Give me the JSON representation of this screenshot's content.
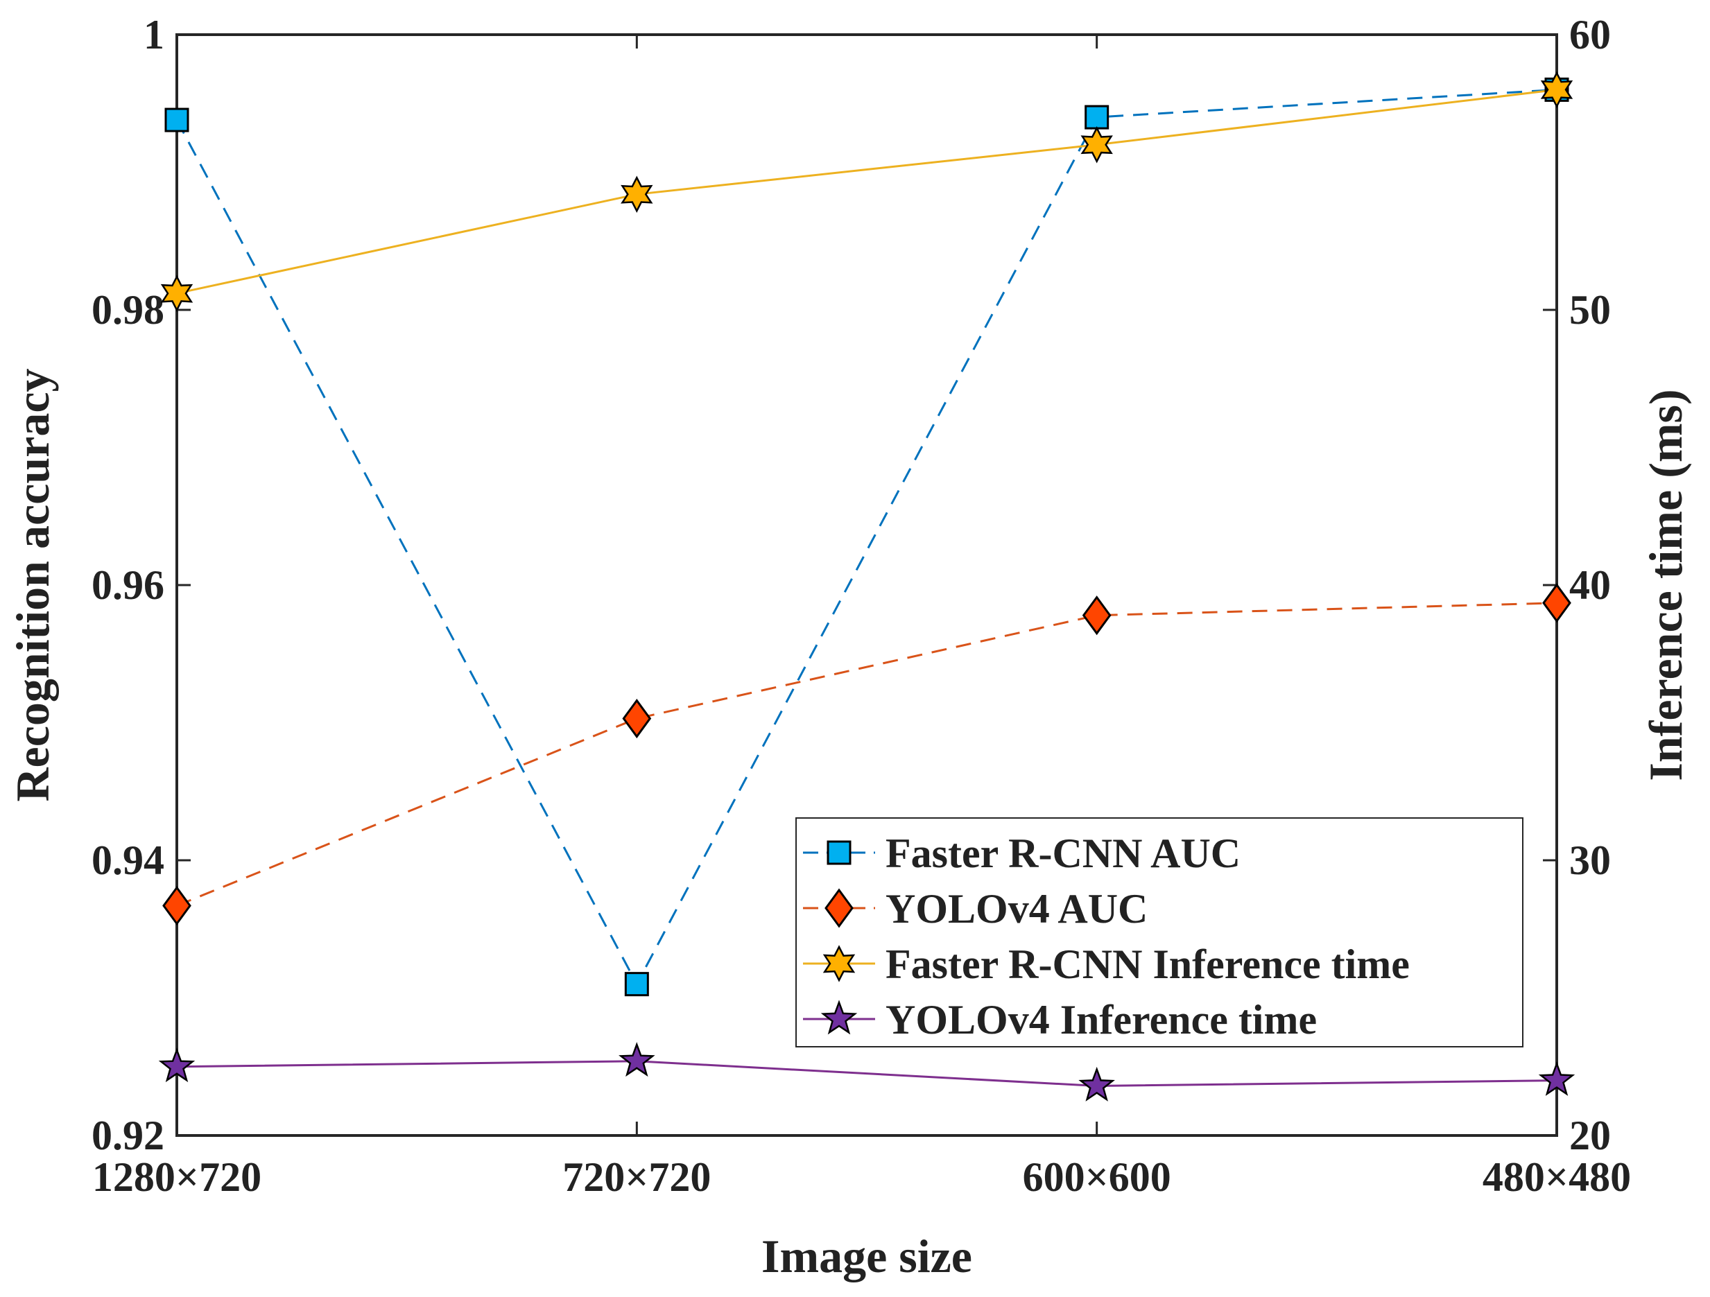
{
  "chart_data": {
    "type": "line",
    "title": "",
    "xlabel": "Image size",
    "ylabel_left": "Recognition accuracy",
    "ylabel_right": "Inference time (ms)",
    "categories": [
      "1280×720",
      "720×720",
      "600×600",
      "480×480"
    ],
    "ylim_left": [
      0.92,
      1
    ],
    "ylim_right": [
      20,
      60
    ],
    "yticks_left": [
      "0.92",
      "0.94",
      "0.96",
      "0.98",
      "1"
    ],
    "yticks_right": [
      "20",
      "30",
      "40",
      "50",
      "60"
    ],
    "grid": false,
    "legend_position": "bottom-right",
    "series": [
      {
        "name": "Faster R-CNN AUC",
        "axis": "left",
        "marker": "square",
        "line": "dashed",
        "color": "#0072BD",
        "fill": "#00B0F0",
        "values": [
          0.9938,
          0.931,
          0.994,
          0.996
        ]
      },
      {
        "name": "YOLOv4 AUC",
        "axis": "left",
        "marker": "diamond",
        "line": "dashed",
        "color": "#D95319",
        "fill": "#FF4500",
        "values": [
          0.9367,
          0.9503,
          0.9578,
          0.9587
        ]
      },
      {
        "name": "Faster R-CNN Inference time",
        "axis": "right",
        "marker": "hexagram",
        "line": "solid",
        "color": "#EDB120",
        "fill": "#FFB000",
        "values": [
          50.6,
          54.2,
          56.0,
          58.0
        ]
      },
      {
        "name": "YOLOv4 Inference time",
        "axis": "right",
        "marker": "pentagram",
        "line": "solid",
        "color": "#7E2F8E",
        "fill": "#7030A0",
        "values": [
          22.5,
          22.7,
          21.8,
          22.0
        ]
      }
    ]
  }
}
